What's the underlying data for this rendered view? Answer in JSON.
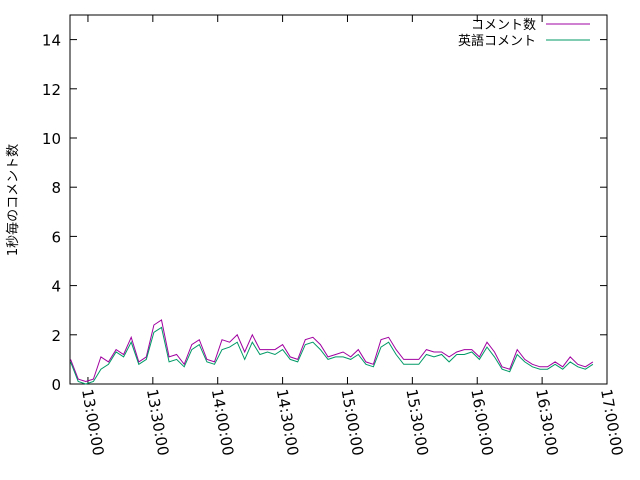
{
  "chart_data": {
    "type": "line",
    "title": "",
    "xlabel": "",
    "ylabel": "1秒毎のコメント数",
    "x_unit": "time_hh:mm:ss",
    "xlim": [
      "13:00:00",
      "17:00:00"
    ],
    "ylim": [
      0,
      15
    ],
    "x_ticks": [
      "13:00:00",
      "13:30:00",
      "14:00:00",
      "14:30:00",
      "15:00:00",
      "15:30:00",
      "16:00:00",
      "16:30:00",
      "17:00:00"
    ],
    "y_ticks": [
      "0",
      "2",
      "4",
      "6",
      "8",
      "10",
      "12",
      "14"
    ],
    "grid": false,
    "legend_position": "top-right",
    "series": [
      {
        "name": "コメント数",
        "color": "#a000a0",
        "x": [
          "12:52:00",
          "12:55:30",
          "12:59:00",
          "13:02:30",
          "13:06:00",
          "13:09:30",
          "13:13:00",
          "13:16:30",
          "13:20:00",
          "13:23:30",
          "13:27:00",
          "13:30:30",
          "13:34:00",
          "13:37:30",
          "13:41:00",
          "13:44:30",
          "13:48:00",
          "13:51:30",
          "13:55:00",
          "13:58:30",
          "14:02:00",
          "14:05:30",
          "14:09:00",
          "14:12:30",
          "14:16:00",
          "14:19:30",
          "14:23:00",
          "14:26:30",
          "14:30:00",
          "14:33:30",
          "14:37:00",
          "14:40:30",
          "14:44:00",
          "14:47:30",
          "14:51:00",
          "14:54:30",
          "14:58:00",
          "15:01:30",
          "15:05:00",
          "15:08:30",
          "15:12:00",
          "15:15:30",
          "15:19:00",
          "15:22:30",
          "15:26:00",
          "15:29:30",
          "15:33:00",
          "15:36:30",
          "15:40:00",
          "15:43:30",
          "15:47:00",
          "15:50:30",
          "15:54:00",
          "15:57:30",
          "16:01:00",
          "16:04:30",
          "16:08:00",
          "16:11:30",
          "16:15:00",
          "16:18:30",
          "16:22:00",
          "16:25:30",
          "16:29:00",
          "16:32:30",
          "16:36:00",
          "16:39:30",
          "16:43:00",
          "16:46:30",
          "16:50:00",
          "16:53:30"
        ],
        "values": [
          1.0,
          0.2,
          0.1,
          0.2,
          1.1,
          0.9,
          1.4,
          1.2,
          1.9,
          0.9,
          1.1,
          2.4,
          2.6,
          1.1,
          1.2,
          0.8,
          1.6,
          1.8,
          1.0,
          0.9,
          1.8,
          1.7,
          2.0,
          1.3,
          2.0,
          1.4,
          1.4,
          1.4,
          1.6,
          1.1,
          1.0,
          1.8,
          1.9,
          1.6,
          1.1,
          1.2,
          1.3,
          1.1,
          1.4,
          0.9,
          0.8,
          1.8,
          1.9,
          1.4,
          1.0,
          1.0,
          1.0,
          1.4,
          1.3,
          1.3,
          1.1,
          1.3,
          1.4,
          1.4,
          1.1,
          1.7,
          1.3,
          0.7,
          0.6,
          1.4,
          1.0,
          0.8,
          0.7,
          0.7,
          0.9,
          0.7,
          1.1,
          0.8,
          0.7,
          0.9
        ]
      },
      {
        "name": "英語コメント",
        "color": "#009966",
        "x": [
          "12:52:00",
          "12:55:30",
          "12:59:00",
          "13:02:30",
          "13:06:00",
          "13:09:30",
          "13:13:00",
          "13:16:30",
          "13:20:00",
          "13:23:30",
          "13:27:00",
          "13:30:30",
          "13:34:00",
          "13:37:30",
          "13:41:00",
          "13:44:30",
          "13:48:00",
          "13:51:30",
          "13:55:00",
          "13:58:30",
          "14:02:00",
          "14:05:30",
          "14:09:00",
          "14:12:30",
          "14:16:00",
          "14:19:30",
          "14:23:00",
          "14:26:30",
          "14:30:00",
          "14:33:30",
          "14:37:00",
          "14:40:30",
          "14:44:00",
          "14:47:30",
          "14:51:00",
          "14:54:30",
          "14:58:00",
          "15:01:30",
          "15:05:00",
          "15:08:30",
          "15:12:00",
          "15:15:30",
          "15:19:00",
          "15:22:30",
          "15:26:00",
          "15:29:30",
          "15:33:00",
          "15:36:30",
          "15:40:00",
          "15:43:30",
          "15:47:00",
          "15:50:30",
          "15:54:00",
          "15:57:30",
          "16:01:00",
          "16:04:30",
          "16:08:00",
          "16:11:30",
          "16:15:00",
          "16:18:30",
          "16:22:00",
          "16:25:30",
          "16:29:00",
          "16:32:30",
          "16:36:00",
          "16:39:30",
          "16:43:00",
          "16:46:30",
          "16:50:00",
          "16:53:30"
        ],
        "values": [
          0.9,
          0.1,
          0.0,
          0.1,
          0.6,
          0.8,
          1.3,
          1.1,
          1.7,
          0.8,
          1.0,
          2.1,
          2.3,
          0.9,
          1.0,
          0.7,
          1.4,
          1.6,
          0.9,
          0.8,
          1.4,
          1.5,
          1.7,
          1.0,
          1.7,
          1.2,
          1.3,
          1.2,
          1.4,
          1.0,
          0.9,
          1.6,
          1.7,
          1.4,
          1.0,
          1.1,
          1.1,
          1.0,
          1.2,
          0.8,
          0.7,
          1.5,
          1.7,
          1.2,
          0.8,
          0.8,
          0.8,
          1.2,
          1.1,
          1.2,
          0.9,
          1.2,
          1.2,
          1.3,
          1.0,
          1.5,
          1.1,
          0.6,
          0.5,
          1.2,
          0.9,
          0.7,
          0.6,
          0.6,
          0.8,
          0.6,
          0.9,
          0.7,
          0.6,
          0.8
        ]
      }
    ]
  }
}
